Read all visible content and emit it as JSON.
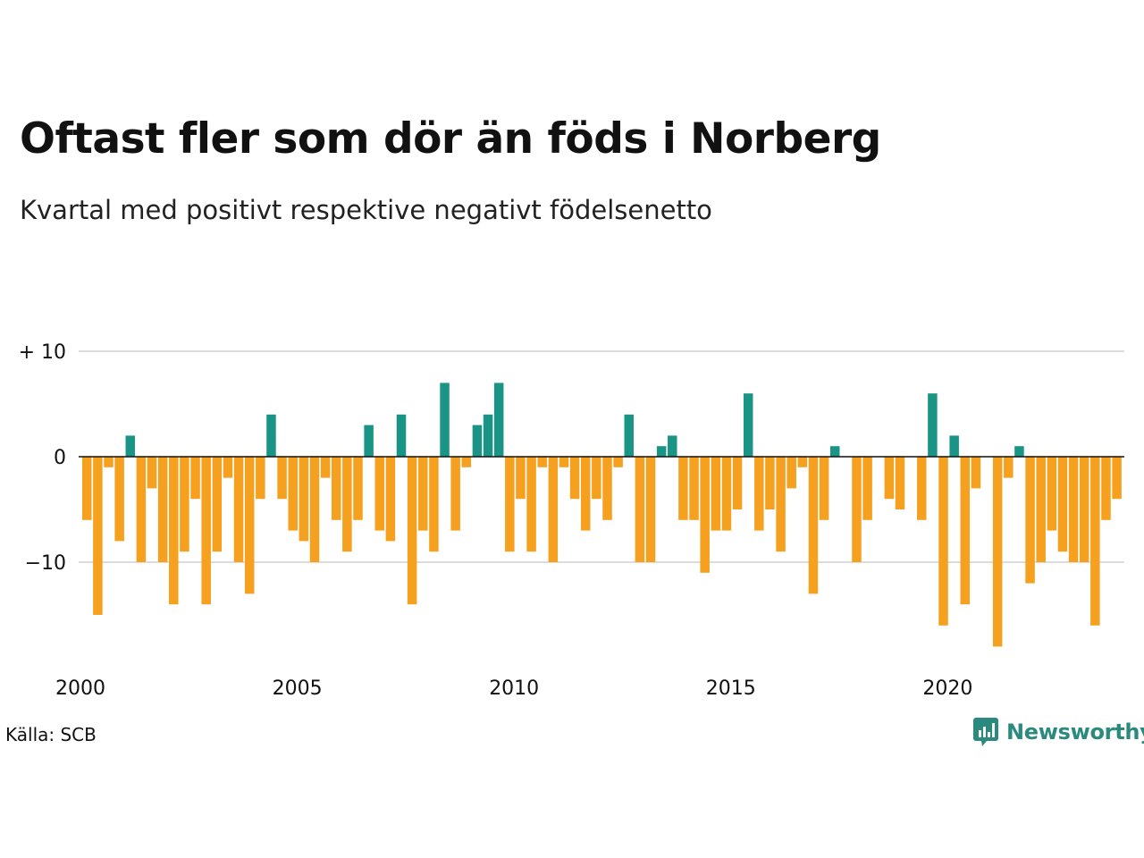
{
  "title": "Oftast fler som dör än föds i Norberg",
  "subtitle": "Kvartal med positivt respektive negativt födelsenetto",
  "source": "Källa: SCB",
  "brand": {
    "name": "Newsworthy",
    "icon": "newsworthy-logo-icon"
  },
  "colors": {
    "positive": "#1a9585",
    "negative": "#f5a01f",
    "grid": "#dcdcdc",
    "zero": "#111111"
  },
  "chart_data": {
    "type": "bar",
    "ylabel": "",
    "xlabel": "",
    "ylim": [
      -18,
      10
    ],
    "yticks": [
      {
        "value": 10,
        "label": "+ 10"
      },
      {
        "value": 0,
        "label": "0"
      },
      {
        "value": -10,
        "label": "−10"
      }
    ],
    "xticks": [
      {
        "year": 2000,
        "label": "2000"
      },
      {
        "year": 2005,
        "label": "2005"
      },
      {
        "year": 2010,
        "label": "2010"
      },
      {
        "year": 2015,
        "label": "2015"
      },
      {
        "year": 2020,
        "label": "2020"
      }
    ],
    "start_year": 2000,
    "values": [
      -6,
      -15,
      -1,
      -8,
      2,
      -10,
      -3,
      -10,
      -14,
      -9,
      -4,
      -14,
      -9,
      -2,
      -10,
      -13,
      -4,
      4,
      -4,
      -7,
      -8,
      -10,
      -2,
      -6,
      -9,
      -6,
      3,
      -7,
      -8,
      4,
      -14,
      -7,
      -9,
      7,
      -7,
      -1,
      3,
      4,
      7,
      -9,
      -4,
      -9,
      -1,
      -10,
      -1,
      -4,
      -7,
      -4,
      -6,
      -1,
      4,
      -10,
      -10,
      1,
      2,
      -6,
      -6,
      -11,
      -7,
      -7,
      -5,
      6,
      -7,
      -5,
      -9,
      -3,
      -1,
      -13,
      -6,
      1,
      0,
      -10,
      -6,
      0,
      -4,
      -5,
      0,
      -6,
      6,
      -16,
      2,
      -14,
      -3,
      0,
      -18,
      -2,
      1,
      -12,
      -10,
      -7,
      -9,
      -10,
      -10,
      -16,
      -6,
      -4
    ]
  }
}
